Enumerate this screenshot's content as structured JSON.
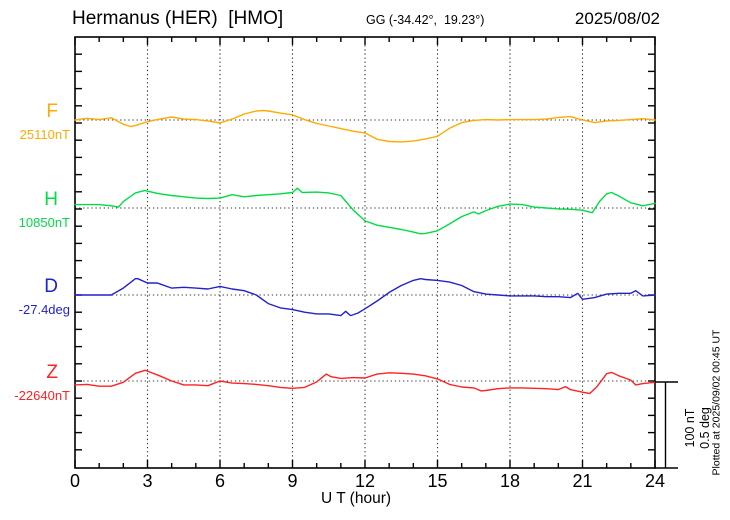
{
  "header": {
    "station_title": "Hermanus (HER)  [HMO]",
    "gg_coords": "GG (-34.42°,  19.23°)",
    "date": "2025/08/02"
  },
  "footer": {
    "xaxis_label": "U T (hour)"
  },
  "scale_bar": {
    "label_nt": "100 nT",
    "label_deg": "0.5 deg"
  },
  "plotted_at": "Plotted at 2025/09/02 00:45 UT",
  "chart_data": {
    "type": "line",
    "title": "Hermanus (HER) [HMO] magnetogram 2025/08/02",
    "xlabel": "U T (hour)",
    "x_range": [
      0,
      24
    ],
    "x_ticks": [
      0,
      3,
      6,
      9,
      12,
      15,
      18,
      21,
      24
    ],
    "grid": "dotted vertical lines every 3 h, dotted horizontal baseline per channel",
    "legend_position": "left channel labels",
    "scale_bar_means": "100 nT and 0.5 deg per 86 px bar shown at lower right",
    "minor_tick_nT": 20,
    "series": [
      {
        "name": "F",
        "unit": "nT",
        "baseline_label": "25110nT",
        "baseline_value": 25110,
        "color": "#FFAA00",
        "points": [
          [
            0,
            25110
          ],
          [
            0.5,
            25112
          ],
          [
            1,
            25110.5
          ],
          [
            1.5,
            25112.5
          ],
          [
            2,
            25105
          ],
          [
            2.3,
            25102.5
          ],
          [
            2.5,
            25103.5
          ],
          [
            3,
            25108
          ],
          [
            3.5,
            25111
          ],
          [
            4,
            25113.5
          ],
          [
            4.5,
            25111
          ],
          [
            5,
            25110.5
          ],
          [
            5.5,
            25109
          ],
          [
            6,
            25106.5
          ],
          [
            6.5,
            25111
          ],
          [
            7,
            25117
          ],
          [
            7.5,
            25120.5
          ],
          [
            7.8,
            25121
          ],
          [
            8,
            25120.5
          ],
          [
            8.5,
            25118
          ],
          [
            9,
            25116
          ],
          [
            9.5,
            25110.5
          ],
          [
            10,
            25106
          ],
          [
            10.5,
            25103
          ],
          [
            11,
            25100
          ],
          [
            11.5,
            25097
          ],
          [
            12,
            25095
          ],
          [
            12.5,
            25087.5
          ],
          [
            13,
            25085
          ],
          [
            13.5,
            25084.5
          ],
          [
            14,
            25085.5
          ],
          [
            14.5,
            25088
          ],
          [
            15,
            25091
          ],
          [
            15.5,
            25100.5
          ],
          [
            16,
            25107
          ],
          [
            16.5,
            25109.5
          ],
          [
            17,
            25110.5
          ],
          [
            17.5,
            25110
          ],
          [
            18,
            25110.5
          ],
          [
            18.5,
            25110.5
          ],
          [
            19,
            25110.5
          ],
          [
            19.5,
            25111
          ],
          [
            20,
            25113
          ],
          [
            20.5,
            25114
          ],
          [
            21,
            25110
          ],
          [
            21.5,
            25107
          ],
          [
            22,
            25109
          ],
          [
            22.5,
            25109.5
          ],
          [
            23,
            25110.5
          ],
          [
            23.5,
            25111.5
          ],
          [
            24,
            25110
          ]
        ]
      },
      {
        "name": "H",
        "unit": "nT",
        "baseline_label": "10850nT",
        "baseline_value": 10850,
        "color": "#00DD44",
        "points": [
          [
            0,
            10854
          ],
          [
            0.5,
            10854
          ],
          [
            1,
            10854
          ],
          [
            1.5,
            10852.5
          ],
          [
            1.8,
            10851
          ],
          [
            2,
            10857.5
          ],
          [
            2.5,
            10867.5
          ],
          [
            2.9,
            10870.5
          ],
          [
            3,
            10869.5
          ],
          [
            3.5,
            10866.5
          ],
          [
            4,
            10864.5
          ],
          [
            4.5,
            10863
          ],
          [
            5,
            10861.5
          ],
          [
            5.5,
            10861
          ],
          [
            6,
            10861.5
          ],
          [
            6.5,
            10865.5
          ],
          [
            7,
            10863
          ],
          [
            7.5,
            10864.5
          ],
          [
            8,
            10865.5
          ],
          [
            8.5,
            10866.5
          ],
          [
            9,
            10868
          ],
          [
            9.2,
            10873
          ],
          [
            9.4,
            10868
          ],
          [
            10,
            10868.5
          ],
          [
            10.5,
            10867.5
          ],
          [
            11,
            10864.5
          ],
          [
            11.5,
            10848
          ],
          [
            12,
            10835
          ],
          [
            12.5,
            10830
          ],
          [
            13,
            10827.5
          ],
          [
            13.5,
            10825
          ],
          [
            14,
            10822
          ],
          [
            14.3,
            10820
          ],
          [
            14.5,
            10820.5
          ],
          [
            15,
            10823.5
          ],
          [
            15.5,
            10831.5
          ],
          [
            16,
            10840
          ],
          [
            16.5,
            10845.5
          ],
          [
            16.7,
            10843
          ],
          [
            17,
            10847
          ],
          [
            17.5,
            10852
          ],
          [
            18,
            10854.5
          ],
          [
            18.5,
            10854
          ],
          [
            19,
            10851
          ],
          [
            19.5,
            10850
          ],
          [
            20,
            10849
          ],
          [
            20.5,
            10848.5
          ],
          [
            21,
            10847.5
          ],
          [
            21.4,
            10844.5
          ],
          [
            21.7,
            10857.5
          ],
          [
            22,
            10866.5
          ],
          [
            22.2,
            10868
          ],
          [
            22.5,
            10864
          ],
          [
            23,
            10856
          ],
          [
            23.5,
            10852.5
          ],
          [
            24,
            10855.5
          ]
        ]
      },
      {
        "name": "D",
        "unit": "deg",
        "baseline_label": "-27.4deg",
        "baseline_value": -27.4,
        "color": "#2222CC",
        "points": [
          [
            0,
            -27.4
          ],
          [
            0.5,
            -27.4
          ],
          [
            1,
            -27.4
          ],
          [
            1.5,
            -27.4
          ],
          [
            2,
            -27.36
          ],
          [
            2.5,
            -27.305
          ],
          [
            2.6,
            -27.305
          ],
          [
            3,
            -27.33
          ],
          [
            3.4,
            -27.33
          ],
          [
            3.5,
            -27.335
          ],
          [
            4,
            -27.36
          ],
          [
            4.5,
            -27.355
          ],
          [
            5,
            -27.36
          ],
          [
            5.5,
            -27.365
          ],
          [
            6,
            -27.35
          ],
          [
            6.5,
            -27.365
          ],
          [
            7,
            -27.375
          ],
          [
            7.5,
            -27.4
          ],
          [
            8,
            -27.45
          ],
          [
            8.5,
            -27.475
          ],
          [
            9,
            -27.485
          ],
          [
            9.5,
            -27.5
          ],
          [
            10,
            -27.51
          ],
          [
            10.5,
            -27.51
          ],
          [
            11,
            -27.52
          ],
          [
            11.2,
            -27.495
          ],
          [
            11.4,
            -27.52
          ],
          [
            11.7,
            -27.505
          ],
          [
            12,
            -27.48
          ],
          [
            12.5,
            -27.435
          ],
          [
            13,
            -27.385
          ],
          [
            13.5,
            -27.345
          ],
          [
            14,
            -27.315
          ],
          [
            14.3,
            -27.305
          ],
          [
            14.5,
            -27.31
          ],
          [
            15,
            -27.315
          ],
          [
            15.5,
            -27.325
          ],
          [
            16,
            -27.345
          ],
          [
            16.5,
            -27.38
          ],
          [
            17,
            -27.395
          ],
          [
            17.5,
            -27.4
          ],
          [
            18,
            -27.405
          ],
          [
            18.5,
            -27.405
          ],
          [
            19,
            -27.405
          ],
          [
            19.5,
            -27.41
          ],
          [
            20,
            -27.41
          ],
          [
            20.5,
            -27.415
          ],
          [
            20.8,
            -27.39
          ],
          [
            21,
            -27.425
          ],
          [
            21.5,
            -27.415
          ],
          [
            22,
            -27.395
          ],
          [
            22.5,
            -27.39
          ],
          [
            23,
            -27.39
          ],
          [
            23.2,
            -27.375
          ],
          [
            23.5,
            -27.405
          ],
          [
            24,
            -27.4
          ]
        ]
      },
      {
        "name": "Z",
        "unit": "nT",
        "baseline_label": "-22640nT",
        "baseline_value": -22640,
        "color": "#FF2222",
        "points": [
          [
            0,
            -22644.5
          ],
          [
            0.5,
            -22644
          ],
          [
            1,
            -22646
          ],
          [
            1.5,
            -22646
          ],
          [
            2,
            -22641.5
          ],
          [
            2.5,
            -22631
          ],
          [
            2.9,
            -22627.5
          ],
          [
            3,
            -22628.5
          ],
          [
            3.5,
            -22634
          ],
          [
            4,
            -22640
          ],
          [
            4.5,
            -22644.5
          ],
          [
            5,
            -22644.5
          ],
          [
            5.5,
            -22645.5
          ],
          [
            6,
            -22640
          ],
          [
            6.5,
            -22642.5
          ],
          [
            7,
            -22643
          ],
          [
            7.5,
            -22644
          ],
          [
            8,
            -22645.5
          ],
          [
            8.5,
            -22647.5
          ],
          [
            9,
            -22648.5
          ],
          [
            9.5,
            -22647.5
          ],
          [
            10,
            -22641
          ],
          [
            10.4,
            -22632
          ],
          [
            10.6,
            -22635
          ],
          [
            11,
            -22637
          ],
          [
            11.5,
            -22636
          ],
          [
            12,
            -22636.5
          ],
          [
            12.5,
            -22632
          ],
          [
            13,
            -22630.5
          ],
          [
            13.5,
            -22631
          ],
          [
            14,
            -22632
          ],
          [
            14.5,
            -22634
          ],
          [
            15,
            -22637.5
          ],
          [
            15.5,
            -22644
          ],
          [
            16,
            -22647
          ],
          [
            16.5,
            -22648
          ],
          [
            16.8,
            -22651.5
          ],
          [
            17,
            -22651
          ],
          [
            17.5,
            -22649
          ],
          [
            18,
            -22648
          ],
          [
            18.5,
            -22648
          ],
          [
            19,
            -22648.5
          ],
          [
            19.5,
            -22649
          ],
          [
            20,
            -22650
          ],
          [
            20.3,
            -22646.5
          ],
          [
            20.5,
            -22650
          ],
          [
            21,
            -22653
          ],
          [
            21.3,
            -22654.5
          ],
          [
            21.6,
            -22646.5
          ],
          [
            22,
            -22631.5
          ],
          [
            22.2,
            -22630
          ],
          [
            22.5,
            -22634
          ],
          [
            23,
            -22639
          ],
          [
            23.2,
            -22644.5
          ],
          [
            23.5,
            -22643
          ],
          [
            24,
            -22641.5
          ]
        ]
      }
    ]
  }
}
